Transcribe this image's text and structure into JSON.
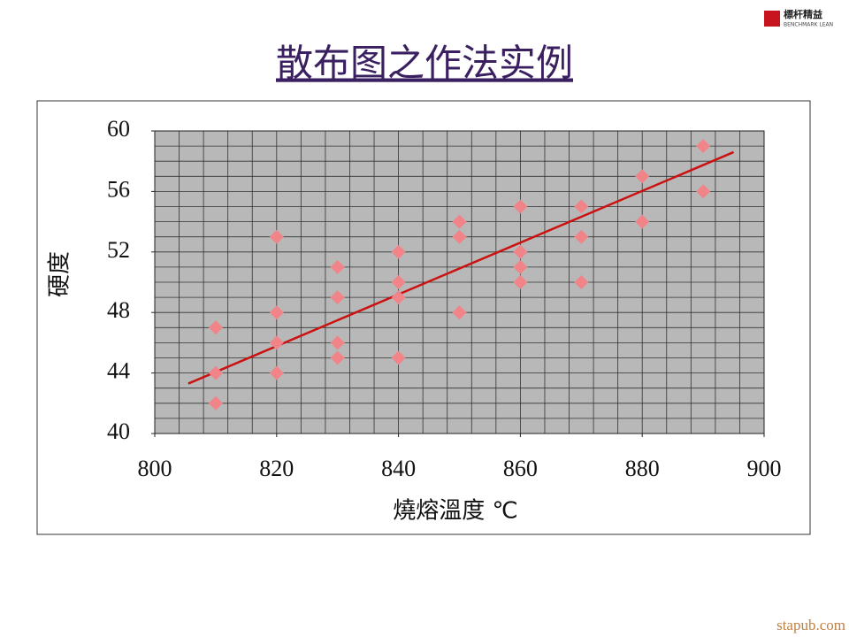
{
  "logo": {
    "name": "標杆精益",
    "subtitle": "BENCHMARK LEAN"
  },
  "watermark": "stapub.com",
  "chart_data": {
    "type": "scatter",
    "title": "散布图之作法实例",
    "x_label": "燒熔溫度 ℃",
    "y_label": "硬度",
    "xlim": [
      800,
      900
    ],
    "ylim": [
      40,
      60
    ],
    "xticks": [
      800,
      820,
      840,
      860,
      880,
      900
    ],
    "yticks": [
      40,
      44,
      48,
      52,
      56,
      60
    ],
    "grid": true,
    "minor_grid": {
      "x_step": 4,
      "y_step": 1
    },
    "plot_background": "#b8b8b8",
    "series": [
      {
        "color": "#f08488",
        "x": [
          810,
          810,
          810,
          820,
          820,
          820,
          820,
          830,
          830,
          830,
          830,
          840,
          840,
          840,
          840,
          850,
          850,
          850,
          860,
          860,
          860,
          860,
          870,
          870,
          870,
          880,
          880,
          890,
          890
        ],
        "values": [
          47,
          44,
          42,
          53,
          48,
          46,
          44,
          51,
          49,
          46,
          45,
          52,
          50,
          49,
          45,
          54,
          53,
          48,
          55,
          52,
          51,
          50,
          55,
          53,
          50,
          57,
          54,
          59,
          56
        ]
      }
    ],
    "trendline": {
      "color": "#cc1111",
      "x": [
        805.5,
        895
      ],
      "values": [
        43.3,
        58.6
      ]
    }
  }
}
